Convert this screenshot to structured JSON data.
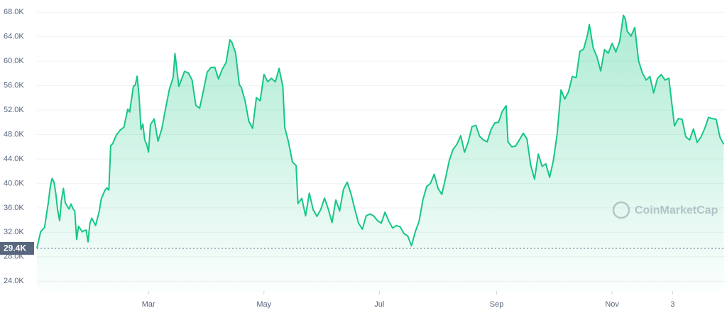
{
  "chart_data": {
    "type": "area",
    "watermark": "CoinMarketCap",
    "xlim": [
      0,
      364
    ],
    "xticks": [
      {
        "value": 59,
        "label": "Mar"
      },
      {
        "value": 120,
        "label": "May"
      },
      {
        "value": 181,
        "label": "Jul"
      },
      {
        "value": 243,
        "label": "Sep"
      },
      {
        "value": 304,
        "label": "Nov"
      },
      {
        "value": 336,
        "label": "3"
      }
    ],
    "ylim": [
      22400,
      70000
    ],
    "yticks": [
      {
        "value": 24000,
        "label": "24.0K"
      },
      {
        "value": 28000,
        "label": "28.0K"
      },
      {
        "value": 32000,
        "label": "32.0K"
      },
      {
        "value": 36000,
        "label": "36.0K"
      },
      {
        "value": 40000,
        "label": "40.0K"
      },
      {
        "value": 44000,
        "label": "44.0K"
      },
      {
        "value": 48000,
        "label": "48.0K"
      },
      {
        "value": 52000,
        "label": "52.0K"
      },
      {
        "value": 56000,
        "label": "56.0K"
      },
      {
        "value": 60000,
        "label": "60.0K"
      },
      {
        "value": 64000,
        "label": "64.0K"
      },
      {
        "value": 68000,
        "label": "68.0K"
      }
    ],
    "grid": true,
    "reference_line": {
      "value": 29374,
      "label": "29.4K"
    },
    "series": [
      {
        "color": "#16c784",
        "x": [
          0,
          2,
          4,
          6,
          7,
          8,
          9,
          10,
          11,
          12,
          13,
          14,
          15,
          17,
          18,
          19,
          20,
          21,
          22,
          24,
          25,
          26,
          27,
          28,
          29,
          31,
          33,
          34,
          36,
          37,
          38,
          39,
          40,
          42,
          44,
          46,
          48,
          49,
          51,
          52,
          53,
          54,
          55,
          56,
          57,
          58,
          59,
          60,
          62,
          64,
          66,
          68,
          70,
          72,
          73,
          75,
          78,
          80,
          82,
          84,
          86,
          88,
          90,
          92,
          94,
          96,
          98,
          100,
          102,
          103,
          105,
          107,
          108,
          110,
          112,
          114,
          116,
          118,
          120,
          122,
          124,
          126,
          128,
          130,
          131,
          133,
          135,
          137,
          138,
          140,
          142,
          144,
          146,
          148,
          150,
          152,
          154,
          156,
          158,
          160,
          162,
          164,
          166,
          168,
          170,
          172,
          174,
          176,
          178,
          180,
          182,
          184,
          186,
          188,
          190,
          192,
          194,
          196,
          198,
          200,
          202,
          204,
          206,
          208,
          210,
          212,
          214,
          216,
          218,
          220,
          222,
          224,
          226,
          228,
          230,
          232,
          234,
          236,
          238,
          240,
          242,
          244,
          246,
          248,
          249,
          251,
          253,
          255,
          257,
          259,
          261,
          263,
          265,
          267,
          269,
          271,
          273,
          275,
          277,
          279,
          281,
          283,
          285,
          287,
          289,
          291,
          292,
          294,
          296,
          298,
          300,
          302,
          304,
          306,
          308,
          310,
          311,
          312,
          314,
          316,
          318,
          320,
          322,
          324,
          326,
          328,
          330,
          332,
          334,
          337,
          339,
          341,
          343,
          345,
          347,
          349,
          351,
          353,
          355,
          357,
          359,
          361,
          363
        ],
        "values": [
          29374,
          32127,
          32782,
          36824,
          39371,
          40797,
          40254,
          38356,
          35566,
          33922,
          37316,
          39187,
          36825,
          35792,
          36630,
          35891,
          35468,
          30825,
          33005,
          32067,
          32289,
          32366,
          30432,
          33466,
          34316,
          33114,
          35510,
          37472,
          38903,
          39266,
          38903,
          46196,
          46481,
          47909,
          48717,
          49207,
          52149,
          51679,
          55888,
          56099,
          57539,
          54207,
          48824,
          49705,
          47093,
          46340,
          45137,
          49631,
          50538,
          46906,
          48912,
          52246,
          55362,
          57333,
          61243,
          55851,
          58330,
          58077,
          56931,
          52774,
          52302,
          55137,
          58203,
          58968,
          59010,
          57090,
          58720,
          59773,
          63503,
          63110,
          61342,
          56150,
          55725,
          53556,
          50163,
          49005,
          54030,
          53540,
          57828,
          56631,
          57200,
          56610,
          58803,
          55859,
          49150,
          46760,
          43538,
          42909,
          36700,
          37550,
          34700,
          38400,
          35700,
          34600,
          35700,
          37600,
          35800,
          33600,
          37300,
          35500,
          39000,
          40200,
          38300,
          35800,
          33500,
          32500,
          34700,
          35000,
          34700,
          33900,
          33500,
          35300,
          33800,
          32700,
          33100,
          32900,
          31800,
          31400,
          29800,
          32100,
          33800,
          37300,
          39500,
          40000,
          41500,
          39200,
          38200,
          40900,
          43800,
          45600,
          46400,
          47800,
          45100,
          46800,
          49300,
          49500,
          47700,
          47100,
          46800,
          48800,
          49900,
          50000,
          51800,
          52700,
          46800,
          46000,
          46100,
          47100,
          48200,
          47300,
          43000,
          40700,
          44800,
          42800,
          43200,
          41000,
          43800,
          48100,
          55300,
          53800,
          55000,
          57500,
          57300,
          61600,
          62000,
          64300,
          66000,
          62200,
          60700,
          58400,
          61900,
          61300,
          62900,
          61500,
          63200,
          67500,
          66900,
          64900,
          64100,
          65500,
          60100,
          58100,
          56900,
          57500,
          54800,
          57200,
          57800,
          56900,
          57200,
          49400,
          50600,
          50500,
          47600,
          47100,
          48900,
          46700,
          47600,
          49000,
          50800,
          50600,
          50500,
          47600,
          46400
        ]
      }
    ]
  }
}
